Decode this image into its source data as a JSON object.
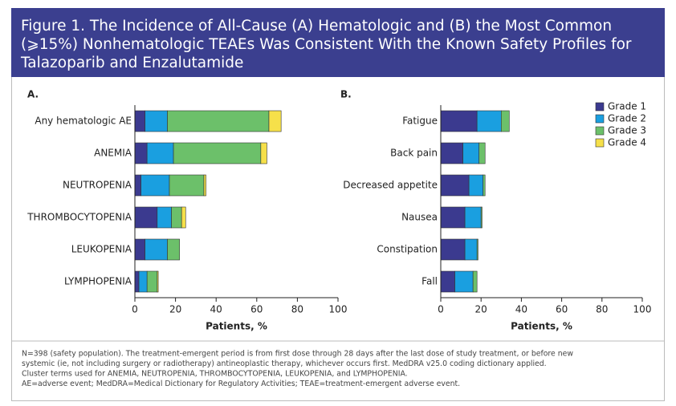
{
  "figure": {
    "title_lines": [
      "Figure 1. The Incidence of All-Cause (A) Hematologic and (B) the Most Common",
      "(⩾15%) Nonhematologic TEAEs Was Consistent With the Known Safety Profiles for",
      "Talazoparib and Enzalutamide"
    ],
    "footnote_lines": [
      "N=398 (safety population). The treatment-emergent period is from first dose through 28 days after the last dose of study treatment, or before new",
      "systemic (ie, not including surgery or radiotherapy) antineoplastic therapy, whichever occurs first. MedDRA v25.0 coding dictionary applied.",
      "Cluster terms used for ANEMIA, NEUTROPENIA, THROMBOCYTOPENIA, LEUKOPENIA, and LYMPHOPENIA.",
      "AE=adverse event; MedDRA=Medical Dictionary for Regulatory Activities; TEAE=treatment-emergent adverse event."
    ]
  },
  "chart_data": [
    {
      "type": "hbar-stacked",
      "panel_label": "A.",
      "xlabel": "Patients, %",
      "categories": [
        "Any hematologic AE",
        "ANEMIA",
        "NEUTROPENIA",
        "THROMBOCYTOPENIA",
        "LEUKOPENIA",
        "LYMPHOPENIA"
      ],
      "series": [
        {
          "color": "#3b3a8f",
          "values": [
            5,
            6,
            3,
            11,
            5,
            2
          ]
        },
        {
          "color": "#1a9fe0",
          "values": [
            11,
            13,
            14,
            7,
            11,
            4
          ]
        },
        {
          "color": "#6cc06a",
          "values": [
            50,
            43,
            17,
            5,
            6,
            5
          ]
        },
        {
          "color": "#f6e04a",
          "values": [
            6,
            3,
            1,
            2,
            0,
            0.5
          ]
        }
      ],
      "xlim": [
        0,
        100
      ],
      "xticks": [
        0,
        20,
        40,
        60,
        80,
        100
      ]
    },
    {
      "type": "hbar-stacked",
      "panel_label": "B.",
      "xlabel": "Patients, %",
      "categories": [
        "Fatigue",
        "Back pain",
        "Decreased appetite",
        "Nausea",
        "Constipation",
        "Fall"
      ],
      "series": [
        {
          "name": "Grade 1",
          "color": "#3b3a8f",
          "values": [
            18,
            11,
            14,
            12,
            12,
            7
          ]
        },
        {
          "name": "Grade 2",
          "color": "#1a9fe0",
          "values": [
            12,
            8,
            7,
            8,
            6,
            9
          ]
        },
        {
          "name": "Grade 3",
          "color": "#6cc06a",
          "values": [
            4,
            3,
            1,
            0.5,
            0.5,
            2
          ]
        },
        {
          "name": "Grade 4",
          "color": "#f6e04a",
          "values": [
            0,
            0,
            0,
            0,
            0,
            0
          ]
        }
      ],
      "xlim": [
        0,
        100
      ],
      "xticks": [
        0,
        20,
        40,
        60,
        80,
        100
      ],
      "legend": "top-right"
    }
  ]
}
